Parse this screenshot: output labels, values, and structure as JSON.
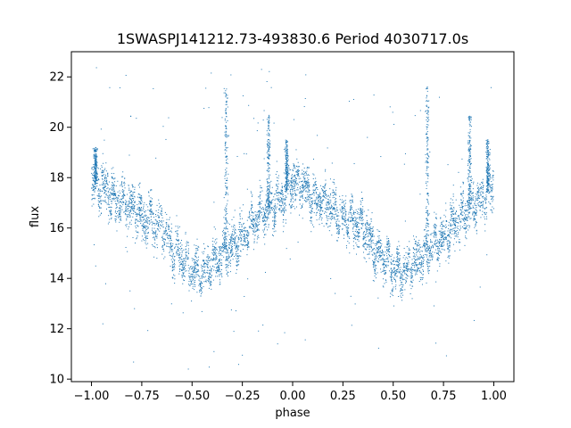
{
  "chart_data": {
    "type": "scatter",
    "title": "1SWASPJ141212.73-493830.6 Period 4030717.0s",
    "xlabel": "phase",
    "ylabel": "flux",
    "xlim": [
      -1.1,
      1.1
    ],
    "ylim": [
      9.9,
      23.0
    ],
    "x_ticks": [
      -1.0,
      -0.75,
      -0.5,
      -0.25,
      0.0,
      0.25,
      0.5,
      0.75,
      1.0
    ],
    "x_tick_labels": [
      "−1.00",
      "−0.75",
      "−0.50",
      "−0.25",
      "0.00",
      "0.25",
      "0.50",
      "0.75",
      "1.00"
    ],
    "y_ticks": [
      10,
      12,
      14,
      16,
      18,
      20,
      22
    ],
    "y_tick_labels": [
      "10",
      "12",
      "14",
      "16",
      "18",
      "20",
      "22"
    ],
    "grid": false,
    "point_color": "#1f77b4",
    "series": [
      {
        "phase_profile": {
          "x": [
            0.0,
            0.05,
            0.1,
            0.15,
            0.2,
            0.25,
            0.3,
            0.35,
            0.4,
            0.45,
            0.5,
            0.55,
            0.6,
            0.65,
            0.7,
            0.75,
            0.8,
            0.85,
            0.9,
            0.95,
            1.0
          ],
          "y": [
            17.8,
            17.7,
            17.2,
            17.0,
            16.8,
            16.4,
            16.3,
            16.1,
            15.2,
            14.8,
            14.3,
            14.2,
            14.6,
            14.8,
            15.3,
            15.6,
            16.2,
            16.6,
            16.9,
            17.2,
            17.8
          ]
        },
        "spikes": [
          {
            "x": 0.67,
            "y_top": 21.6
          },
          {
            "x": -0.33,
            "y_top": 21.6
          },
          {
            "x": 0.97,
            "y_top": 19.5
          },
          {
            "x": -0.03,
            "y_top": 19.5
          },
          {
            "x": -0.98,
            "y_top": 19.2
          },
          {
            "x": 0.88,
            "y_top": 20.5
          },
          {
            "x": -0.12,
            "y_top": 20.5
          }
        ],
        "scatter_range": [
          10.3,
          22.4
        ]
      }
    ]
  }
}
